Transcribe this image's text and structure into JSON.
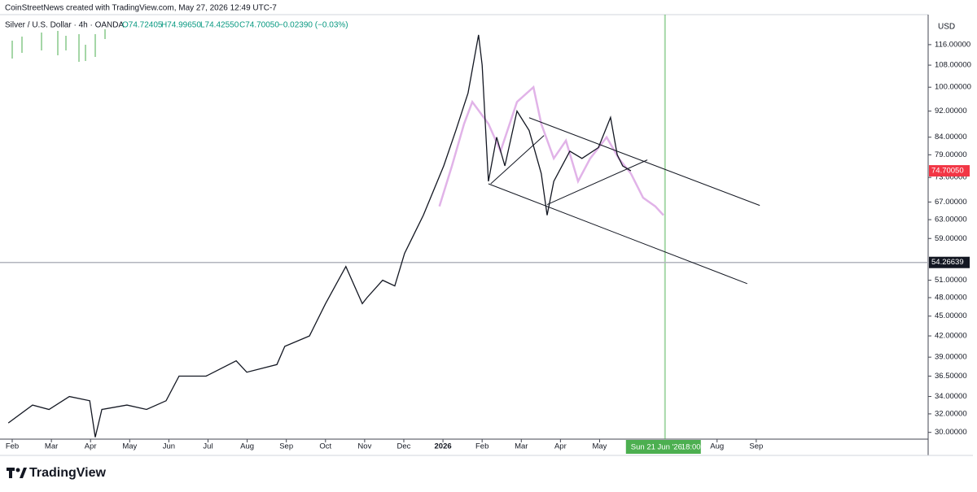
{
  "header": "CoinStreetNews created with TradingView.com, May 27, 2026 12:49 UTC-7",
  "legend": {
    "symbol": "Silver / U.S. Dollar · 4h · OANDA",
    "open": "O74.72405",
    "high": "H74.99650",
    "low": "L74.42550",
    "close": "C74.70050",
    "change": "−0.02390 (−0.03%)"
  },
  "currency": "USD",
  "brand": "TradingView",
  "chart_data": {
    "type": "line",
    "log_scale": true,
    "xlim": [
      0.688,
      24.39
    ],
    "ylim": [
      29.3,
      128.8
    ],
    "xticks": [
      {
        "value": 1,
        "label": "Feb"
      },
      {
        "value": 2,
        "label": "Mar"
      },
      {
        "value": 3,
        "label": "Apr"
      },
      {
        "value": 4,
        "label": "May"
      },
      {
        "value": 5,
        "label": "Jun"
      },
      {
        "value": 6,
        "label": "Jul"
      },
      {
        "value": 7,
        "label": "Aug"
      },
      {
        "value": 8,
        "label": "Sep"
      },
      {
        "value": 9,
        "label": "Oct"
      },
      {
        "value": 10,
        "label": "Nov"
      },
      {
        "value": 11,
        "label": "Dec"
      },
      {
        "value": 12,
        "label": "2026"
      },
      {
        "value": 13,
        "label": "Feb"
      },
      {
        "value": 14,
        "label": "Mar"
      },
      {
        "value": 15,
        "label": "Apr"
      },
      {
        "value": 16,
        "label": "May"
      },
      {
        "value": 19,
        "label": "Aug"
      },
      {
        "value": 20,
        "label": "Sep"
      }
    ],
    "yticks": [
      {
        "value": 116,
        "label": "116.00000"
      },
      {
        "value": 108,
        "label": "108.00000"
      },
      {
        "value": 100,
        "label": "100.00000"
      },
      {
        "value": 92,
        "label": "92.00000"
      },
      {
        "value": 84,
        "label": "84.00000"
      },
      {
        "value": 79,
        "label": "79.00000"
      },
      {
        "value": 73,
        "label": "73.00000"
      },
      {
        "value": 67,
        "label": "67.00000"
      },
      {
        "value": 63,
        "label": "63.00000"
      },
      {
        "value": 59,
        "label": "59.00000"
      },
      {
        "value": 51,
        "label": "51.00000"
      },
      {
        "value": 48,
        "label": "48.00000"
      },
      {
        "value": 45,
        "label": "45.00000"
      },
      {
        "value": 42,
        "label": "42.00000"
      },
      {
        "value": 39,
        "label": "39.00000"
      },
      {
        "value": 36.5,
        "label": "36.50000"
      },
      {
        "value": 34,
        "label": "34.00000"
      },
      {
        "value": 32,
        "label": "32.00000"
      },
      {
        "value": 30,
        "label": "30.00000"
      }
    ],
    "series": [
      {
        "name": "Silver / U.S. Dollar",
        "color": "#131722",
        "x": [
          0.9,
          1.52,
          1.94,
          2.46,
          2.98,
          3.12,
          3.29,
          3.93,
          4.43,
          4.93,
          5.26,
          5.95,
          6.72,
          6.99,
          7.76,
          7.96,
          8.59,
          9.0,
          9.52,
          9.94,
          10.06,
          10.46,
          10.77,
          11.02,
          11.5,
          12.02,
          12.33,
          12.64,
          12.91,
          13.0,
          13.16,
          13.37,
          13.58,
          13.89,
          14.2,
          14.51,
          14.66,
          14.83,
          15.24,
          15.55,
          15.97,
          16.28,
          16.45,
          16.59,
          16.8
        ],
        "values": [
          31,
          33,
          32.5,
          34,
          33.5,
          29.5,
          32.5,
          33,
          32.5,
          33.5,
          36.5,
          36.5,
          38.5,
          37,
          38,
          40.5,
          42,
          47,
          53.5,
          47,
          48,
          51,
          50,
          56,
          64,
          76,
          86,
          98,
          120,
          108,
          72,
          84,
          76,
          92,
          86,
          74,
          64,
          72,
          80,
          78,
          81,
          90,
          79,
          76,
          74.7
        ]
      },
      {
        "name": "Projection",
        "color": "#e1b3e8",
        "x": [
          11.91,
          12.23,
          12.54,
          12.75,
          13.16,
          13.47,
          13.89,
          14.31,
          14.51,
          14.83,
          15.14,
          15.45,
          15.76,
          16.18,
          16.49,
          16.8,
          17.11,
          17.42,
          17.63
        ],
        "values": [
          66,
          76,
          88,
          95,
          88,
          80,
          95,
          100,
          88,
          78,
          83,
          72,
          78,
          84,
          78,
          74,
          68,
          66,
          64
        ]
      }
    ],
    "drawings": [
      {
        "x": [
          14.2,
          20.09
        ],
        "y": [
          89.9,
          66.2
        ]
      },
      {
        "x": [
          13.16,
          19.77
        ],
        "y": [
          71.4,
          50.4
        ]
      },
      {
        "x": [
          13.22,
          14.58
        ],
        "y": [
          71.4,
          84.5
        ]
      },
      {
        "x": [
          14.66,
          17.22
        ],
        "y": [
          66.4,
          77.6
        ]
      }
    ],
    "price_lines": [
      {
        "value": 54.26639,
        "label": "54.26639",
        "color": "#131722"
      },
      {
        "value": 74.7005,
        "label": "74.70050",
        "color": "#f23645"
      }
    ],
    "crosshair": {
      "x": 17.67,
      "date": "Sun 21 Jun '26",
      "time": "18:00",
      "color": "#4caf50"
    }
  }
}
